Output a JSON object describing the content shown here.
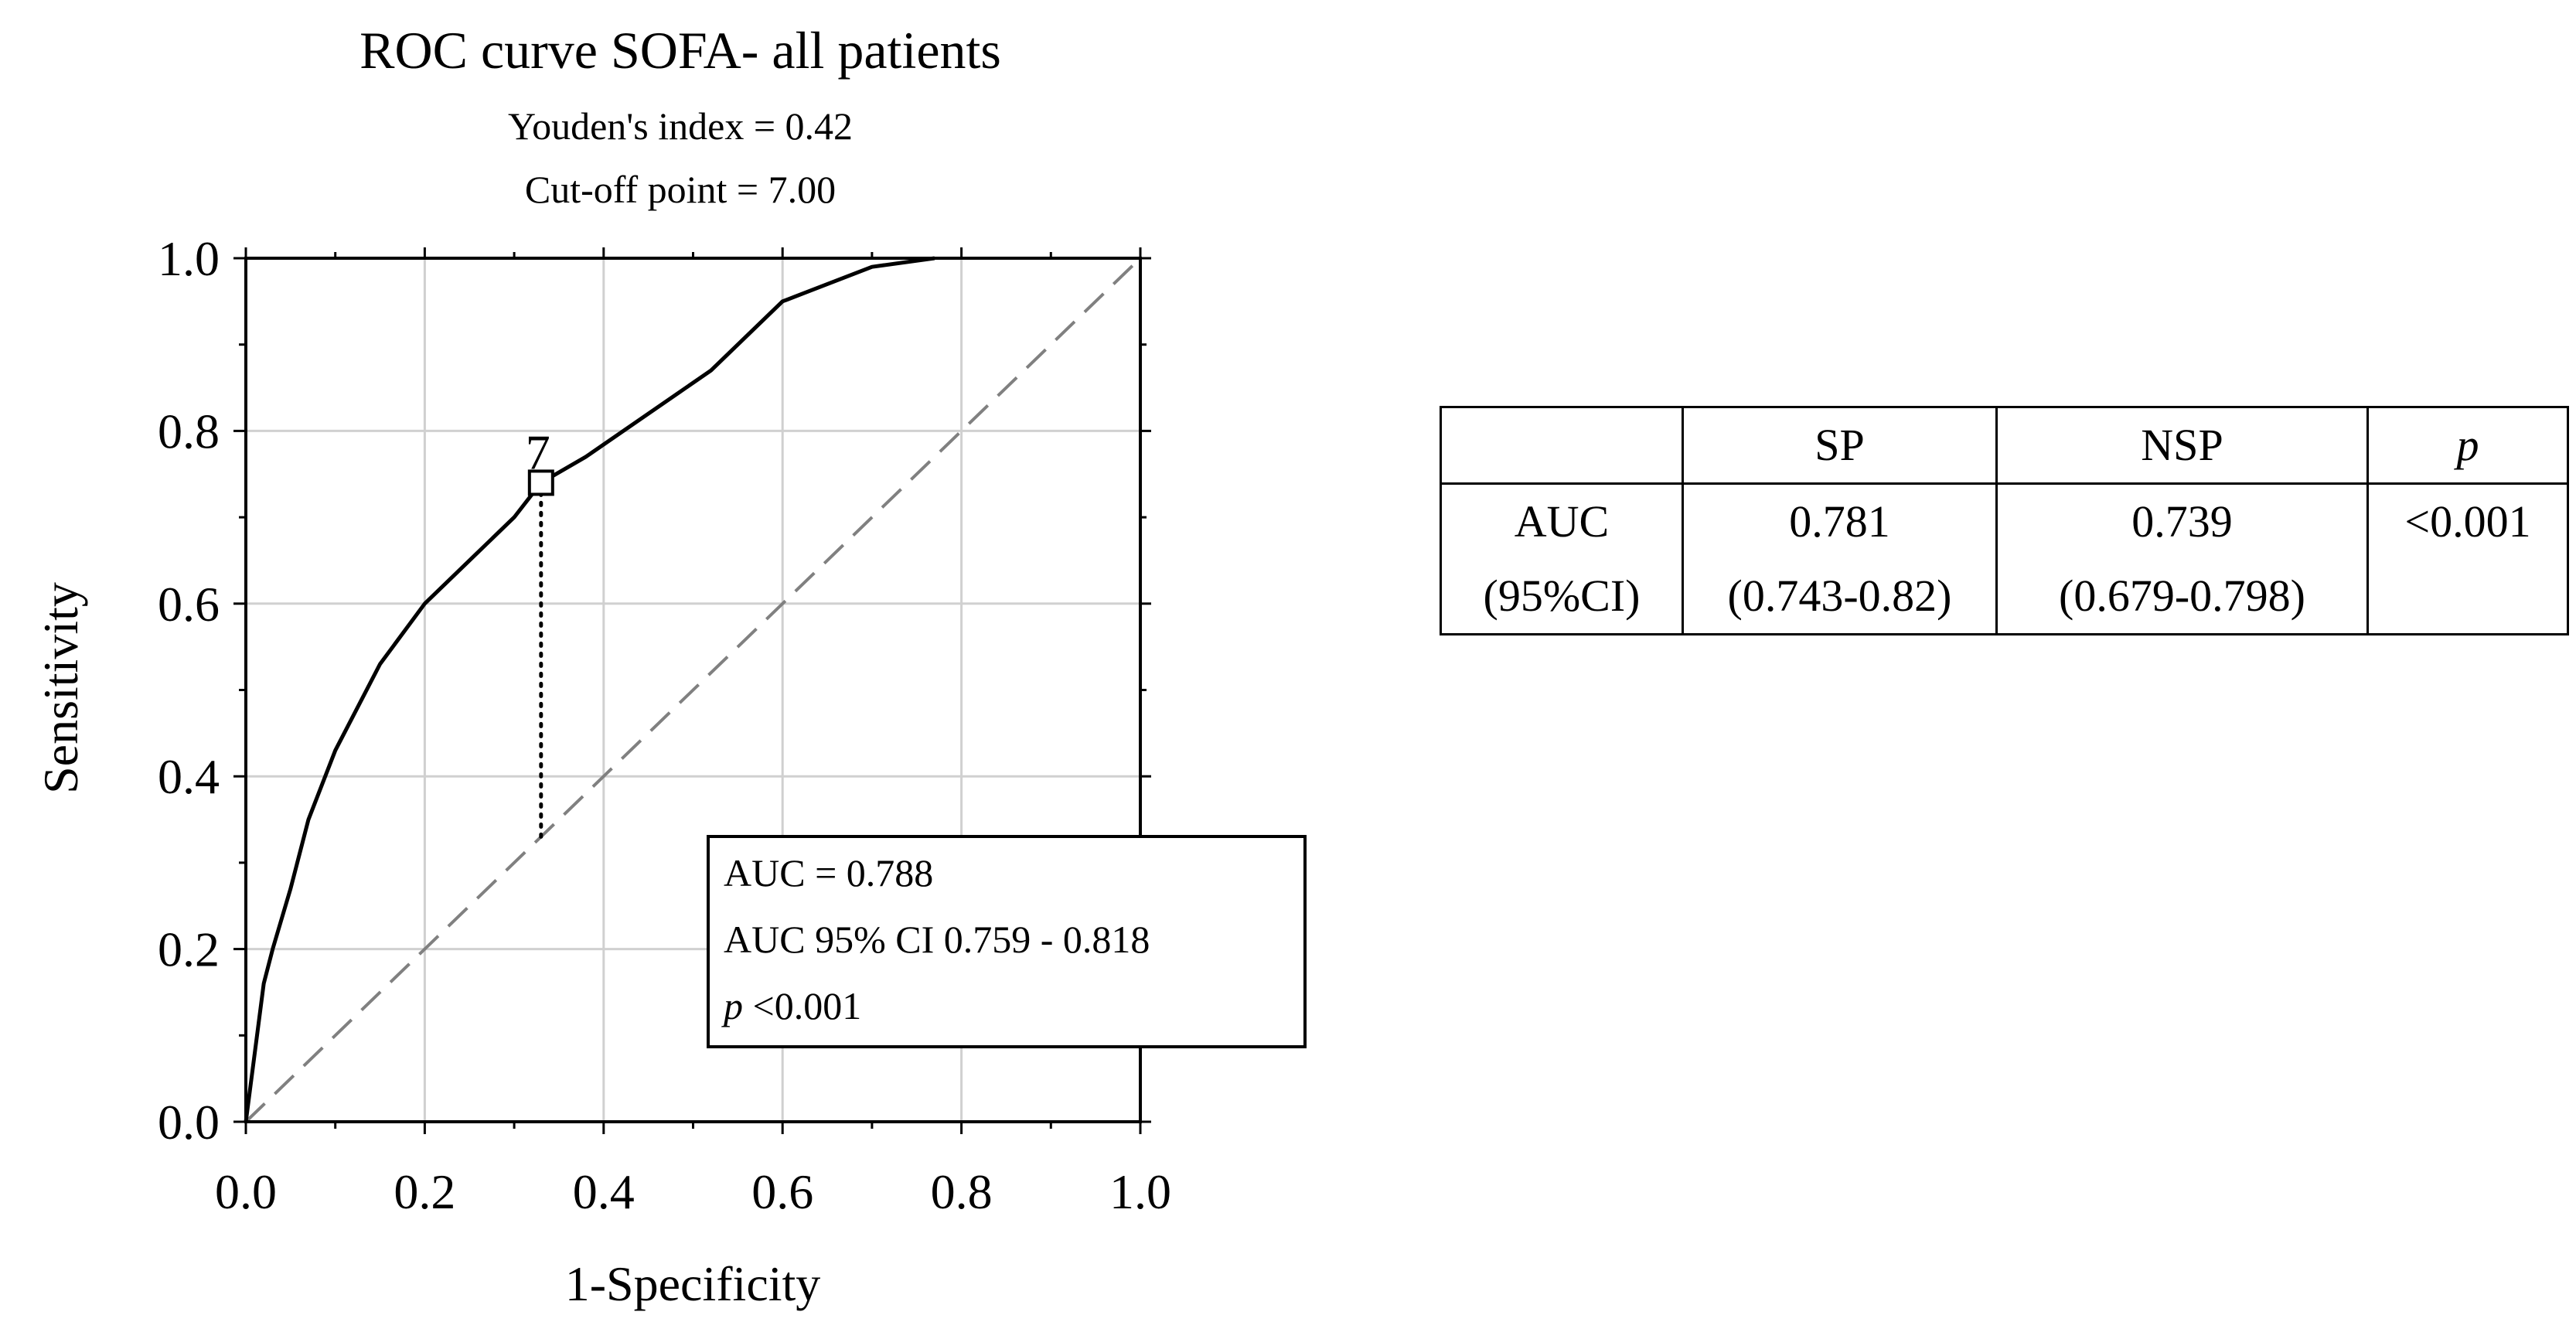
{
  "chart_data": {
    "type": "line",
    "title": "ROC curve SOFA- all patients",
    "subtitle_lines": [
      "Youden's index = 0.42",
      "Cut-off point = 7.00"
    ],
    "xlabel": "1-Specificity",
    "ylabel": "Sensitivity",
    "xlim": [
      0.0,
      1.0
    ],
    "ylim": [
      0.0,
      1.0
    ],
    "x_ticks": [
      0.0,
      0.2,
      0.4,
      0.6,
      0.8,
      1.0
    ],
    "y_ticks": [
      0.0,
      0.2,
      0.4,
      0.6,
      0.8,
      1.0
    ],
    "x_tick_labels": [
      "0.0",
      "0.2",
      "0.4",
      "0.6",
      "0.8",
      "1.0"
    ],
    "y_tick_labels": [
      "0.0",
      "0.2",
      "0.4",
      "0.6",
      "0.8",
      "1.0"
    ],
    "grid": true,
    "series": [
      {
        "style": "solid",
        "x": [
          0.0,
          0.01,
          0.02,
          0.03,
          0.05,
          0.07,
          0.1,
          0.15,
          0.2,
          0.25,
          0.3,
          0.33,
          0.38,
          0.45,
          0.52,
          0.6,
          0.7,
          0.77
        ],
        "y": [
          0.0,
          0.08,
          0.16,
          0.2,
          0.27,
          0.35,
          0.43,
          0.53,
          0.6,
          0.65,
          0.7,
          0.74,
          0.77,
          0.82,
          0.87,
          0.95,
          0.99,
          1.0
        ]
      },
      {
        "style": "dashed",
        "x": [
          0.0,
          1.0
        ],
        "y": [
          0.0,
          1.0
        ]
      }
    ],
    "cutoff_point": {
      "x": 0.33,
      "y": 0.74,
      "label": "7"
    },
    "cutoff_drop_to_y": 0.33,
    "annotation_box": {
      "lines": [
        "AUC = 0.788",
        "AUC 95% CI 0.759 - 0.818"
      ],
      "p_label": "p",
      "p_value": " <0.001",
      "placement": "bottom-right"
    }
  },
  "table": {
    "header": [
      "",
      "SP",
      "NSP",
      "p"
    ],
    "row_label_line1": "AUC",
    "row_label_line2": "(95%CI)",
    "sp_value": "0.781",
    "sp_ci": "(0.743-0.82)",
    "nsp_value": "0.739",
    "nsp_ci": "(0.679-0.798)",
    "p_value": "<0.001"
  }
}
